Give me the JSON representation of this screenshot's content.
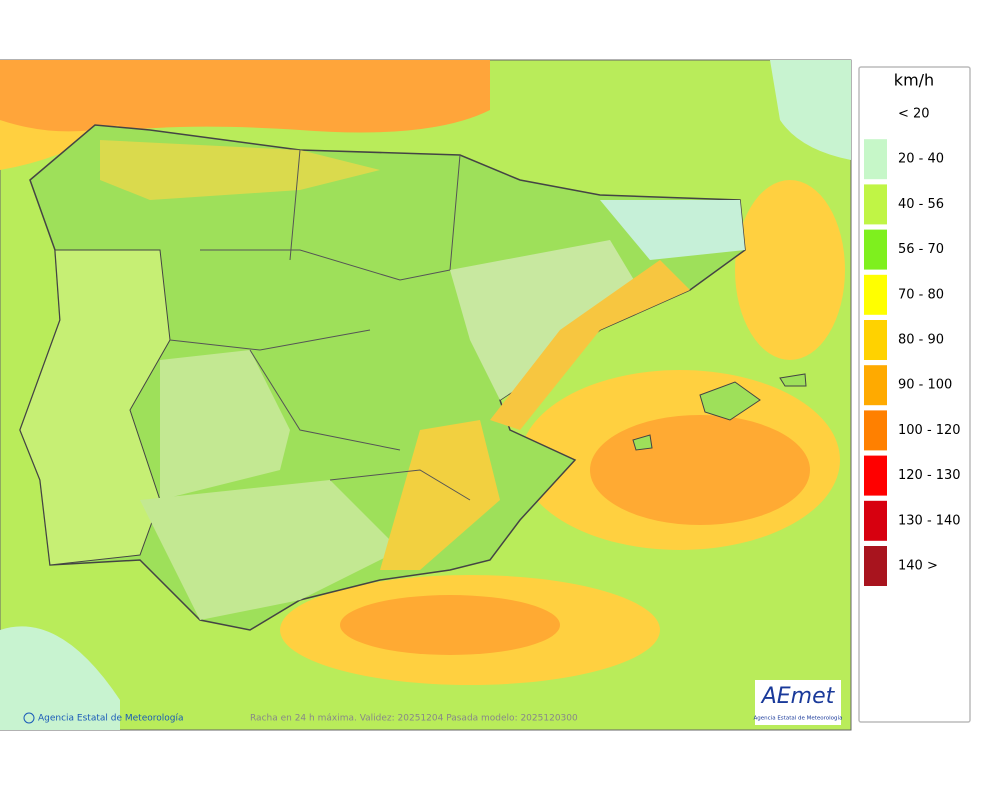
{
  "legend": {
    "unit": "km/h",
    "items": [
      {
        "label": "< 20",
        "color": "#ffffff"
      },
      {
        "label": "20 - 40",
        "color": "#c6f7c8"
      },
      {
        "label": "40 - 56",
        "color": "#c0f545"
      },
      {
        "label": "56 - 70",
        "color": "#7ef01e"
      },
      {
        "label": "70 - 80",
        "color": "#ffff00"
      },
      {
        "label": "80 - 90",
        "color": "#ffd200"
      },
      {
        "label": "90 - 100",
        "color": "#ffaa00"
      },
      {
        "label": "100 - 120",
        "color": "#ff8000"
      },
      {
        "label": "120 - 130",
        "color": "#ff0000"
      },
      {
        "label": "130 - 140",
        "color": "#d7000f"
      },
      {
        "label": "140 >",
        "color": "#a8141e"
      }
    ]
  },
  "footer": {
    "credit": "Agencia Estatal de Meteorología",
    "caption": "Racha en 24 h máxima. Validez: 20251204 Pasada modelo: 2025120300"
  },
  "logo": {
    "name": "AEmet",
    "subtitle": "Agencia Estatal de Meteorología"
  }
}
